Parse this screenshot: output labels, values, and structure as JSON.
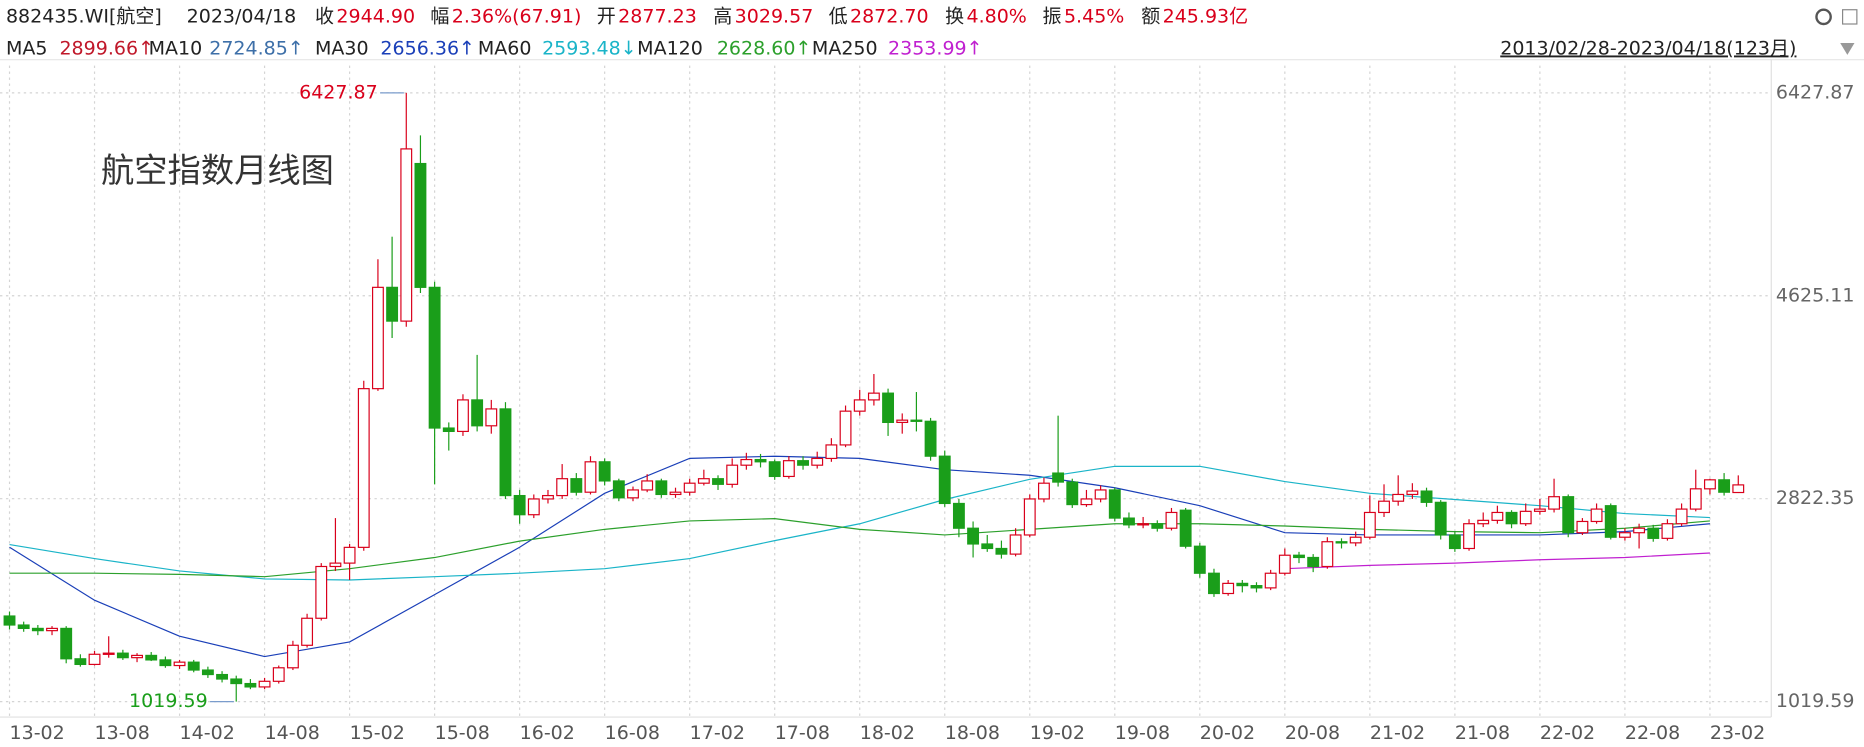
{
  "chart_data": {
    "type": "candlestick",
    "title": "航空指数月线图",
    "quote": {
      "code": "882435.WI[航空]",
      "date": "2023/04/18",
      "fields": [
        {
          "label": "收",
          "value": "2944.90"
        },
        {
          "label": "幅",
          "value": "2.36%(67.91)"
        },
        {
          "label": "开",
          "value": "2877.23"
        },
        {
          "label": "高",
          "value": "3029.57"
        },
        {
          "label": "低",
          "value": "2872.70"
        },
        {
          "label": "换",
          "value": "4.80%"
        },
        {
          "label": "振",
          "value": "5.45%"
        },
        {
          "label": "额",
          "value": "245.93亿"
        }
      ]
    },
    "range_label": "2013/02/28-2023/04/18(123月)",
    "up_color": "#d9001b",
    "down_color": "#1a9e1a",
    "ylim": [
      914,
      6670
    ],
    "yticks": [
      1019.59,
      2822.35,
      4625.11,
      6427.87
    ],
    "grid": true,
    "annotations": [
      6427.87,
      1019.59
    ],
    "categories": [
      "13-02",
      null,
      null,
      null,
      null,
      null,
      "13-08",
      null,
      null,
      null,
      null,
      null,
      "14-02",
      null,
      null,
      null,
      null,
      null,
      "14-08",
      null,
      null,
      null,
      null,
      null,
      "15-02",
      null,
      null,
      null,
      null,
      null,
      "15-08",
      null,
      null,
      null,
      null,
      null,
      "16-02",
      null,
      null,
      null,
      null,
      null,
      "16-08",
      null,
      null,
      null,
      null,
      null,
      "17-02",
      null,
      null,
      null,
      null,
      null,
      "17-08",
      null,
      null,
      null,
      null,
      null,
      "18-02",
      null,
      null,
      null,
      null,
      null,
      "18-08",
      null,
      null,
      null,
      null,
      null,
      "19-02",
      null,
      null,
      null,
      null,
      null,
      "19-08",
      null,
      null,
      null,
      null,
      null,
      "20-02",
      null,
      null,
      null,
      null,
      null,
      "20-08",
      null,
      null,
      null,
      null,
      null,
      "21-02",
      null,
      null,
      null,
      null,
      null,
      "21-08",
      null,
      null,
      null,
      null,
      null,
      "22-02",
      null,
      null,
      null,
      null,
      null,
      "22-08",
      null,
      null,
      null,
      null,
      null,
      "23-02",
      null,
      null
    ],
    "candles": [
      [
        1780,
        1820,
        1660,
        1700
      ],
      [
        1700,
        1730,
        1640,
        1670
      ],
      [
        1670,
        1700,
        1610,
        1650
      ],
      [
        1650,
        1690,
        1610,
        1670
      ],
      [
        1670,
        1690,
        1360,
        1400
      ],
      [
        1400,
        1440,
        1330,
        1350
      ],
      [
        1350,
        1470,
        1340,
        1440
      ],
      [
        1440,
        1600,
        1410,
        1450
      ],
      [
        1450,
        1480,
        1390,
        1410
      ],
      [
        1410,
        1450,
        1370,
        1430
      ],
      [
        1430,
        1460,
        1380,
        1390
      ],
      [
        1390,
        1420,
        1320,
        1340
      ],
      [
        1340,
        1390,
        1310,
        1370
      ],
      [
        1370,
        1390,
        1280,
        1300
      ],
      [
        1300,
        1330,
        1230,
        1260
      ],
      [
        1260,
        1290,
        1190,
        1220
      ],
      [
        1220,
        1250,
        1019.59,
        1180
      ],
      [
        1180,
        1220,
        1130,
        1150
      ],
      [
        1150,
        1230,
        1130,
        1200
      ],
      [
        1200,
        1340,
        1180,
        1320
      ],
      [
        1320,
        1560,
        1300,
        1520
      ],
      [
        1520,
        1800,
        1500,
        1760
      ],
      [
        1760,
        2250,
        1740,
        2220
      ],
      [
        2220,
        2650,
        2180,
        2250
      ],
      [
        2250,
        2420,
        2100,
        2390
      ],
      [
        2390,
        3870,
        2360,
        3800
      ],
      [
        3800,
        4950,
        3780,
        4700
      ],
      [
        4700,
        5150,
        4250,
        4400
      ],
      [
        4400,
        6427.87,
        4350,
        5930
      ],
      [
        5800,
        6050,
        4650,
        4700
      ],
      [
        4700,
        4750,
        2950,
        3450
      ],
      [
        3450,
        3500,
        3250,
        3420
      ],
      [
        3420,
        3750,
        3380,
        3700
      ],
      [
        3700,
        4100,
        3420,
        3470
      ],
      [
        3470,
        3700,
        3400,
        3620
      ],
      [
        3620,
        3680,
        2820,
        2850
      ],
      [
        2850,
        2900,
        2600,
        2680
      ],
      [
        2680,
        2860,
        2650,
        2820
      ],
      [
        2820,
        2900,
        2780,
        2850
      ],
      [
        2850,
        3130,
        2820,
        3000
      ],
      [
        3000,
        3050,
        2850,
        2880
      ],
      [
        2880,
        3200,
        2860,
        3150
      ],
      [
        3150,
        3180,
        2940,
        2980
      ],
      [
        2980,
        3000,
        2800,
        2830
      ],
      [
        2830,
        2930,
        2800,
        2900
      ],
      [
        2900,
        3040,
        2880,
        2980
      ],
      [
        2980,
        3000,
        2830,
        2860
      ],
      [
        2860,
        2920,
        2830,
        2880
      ],
      [
        2880,
        3000,
        2850,
        2960
      ],
      [
        2960,
        3080,
        2940,
        3000
      ],
      [
        3000,
        3030,
        2900,
        2950
      ],
      [
        2950,
        3180,
        2920,
        3120
      ],
      [
        3120,
        3230,
        3080,
        3170
      ],
      [
        3170,
        3220,
        3100,
        3150
      ],
      [
        3150,
        3170,
        2990,
        3020
      ],
      [
        3020,
        3200,
        3000,
        3160
      ],
      [
        3160,
        3200,
        3080,
        3120
      ],
      [
        3120,
        3240,
        3090,
        3180
      ],
      [
        3180,
        3360,
        3150,
        3300
      ],
      [
        3300,
        3650,
        3280,
        3600
      ],
      [
        3600,
        3790,
        3560,
        3700
      ],
      [
        3700,
        3930,
        3650,
        3760
      ],
      [
        3760,
        3800,
        3380,
        3500
      ],
      [
        3500,
        3580,
        3400,
        3520
      ],
      [
        3520,
        3770,
        3420,
        3510
      ],
      [
        3510,
        3540,
        3160,
        3200
      ],
      [
        3200,
        3250,
        2750,
        2780
      ],
      [
        2780,
        2820,
        2480,
        2560
      ],
      [
        2560,
        2620,
        2300,
        2420
      ],
      [
        2420,
        2500,
        2350,
        2380
      ],
      [
        2380,
        2450,
        2290,
        2330
      ],
      [
        2330,
        2560,
        2310,
        2500
      ],
      [
        2500,
        2860,
        2480,
        2820
      ],
      [
        2820,
        3010,
        2790,
        2960
      ],
      [
        3050,
        3560,
        2930,
        2970
      ],
      [
        2970,
        3000,
        2740,
        2770
      ],
      [
        2770,
        2900,
        2750,
        2820
      ],
      [
        2820,
        2940,
        2790,
        2900
      ],
      [
        2900,
        2920,
        2620,
        2650
      ],
      [
        2650,
        2700,
        2560,
        2590
      ],
      [
        2590,
        2660,
        2560,
        2600
      ],
      [
        2600,
        2630,
        2530,
        2560
      ],
      [
        2560,
        2740,
        2540,
        2700
      ],
      [
        2720,
        2740,
        2380,
        2400
      ],
      [
        2400,
        2430,
        2120,
        2160
      ],
      [
        2160,
        2200,
        1950,
        1980
      ],
      [
        1980,
        2100,
        1960,
        2070
      ],
      [
        2070,
        2100,
        1990,
        2050
      ],
      [
        2050,
        2080,
        1990,
        2030
      ],
      [
        2030,
        2190,
        2010,
        2160
      ],
      [
        2160,
        2380,
        2140,
        2320
      ],
      [
        2320,
        2350,
        2250,
        2300
      ],
      [
        2300,
        2330,
        2170,
        2220
      ],
      [
        2220,
        2480,
        2200,
        2440
      ],
      [
        2440,
        2470,
        2380,
        2430
      ],
      [
        2430,
        2530,
        2400,
        2480
      ],
      [
        2480,
        2850,
        2460,
        2700
      ],
      [
        2700,
        2950,
        2660,
        2800
      ],
      [
        2800,
        3030,
        2760,
        2860
      ],
      [
        2860,
        2960,
        2820,
        2890
      ],
      [
        2890,
        2920,
        2750,
        2790
      ],
      [
        2790,
        2810,
        2460,
        2500
      ],
      [
        2500,
        2530,
        2350,
        2380
      ],
      [
        2380,
        2640,
        2360,
        2600
      ],
      [
        2600,
        2700,
        2570,
        2630
      ],
      [
        2630,
        2760,
        2600,
        2700
      ],
      [
        2700,
        2720,
        2560,
        2600
      ],
      [
        2600,
        2780,
        2580,
        2710
      ],
      [
        2710,
        2820,
        2680,
        2730
      ],
      [
        2730,
        3000,
        2700,
        2840
      ],
      [
        2840,
        2860,
        2480,
        2520
      ],
      [
        2520,
        2650,
        2500,
        2620
      ],
      [
        2620,
        2780,
        2600,
        2730
      ],
      [
        2760,
        2780,
        2460,
        2480
      ],
      [
        2480,
        2560,
        2450,
        2520
      ],
      [
        2520,
        2600,
        2380,
        2560
      ],
      [
        2560,
        2590,
        2440,
        2470
      ],
      [
        2470,
        2640,
        2450,
        2600
      ],
      [
        2600,
        2780,
        2580,
        2730
      ],
      [
        2730,
        3080,
        2710,
        2910
      ],
      [
        2910,
        3000,
        2860,
        2990
      ],
      [
        2990,
        3050,
        2850,
        2880
      ],
      [
        2877.23,
        3029.57,
        2872.7,
        2944.9
      ]
    ],
    "series": [
      {
        "name": "MA5",
        "color": "#c0182a",
        "value": 2899.66,
        "value_label": "2899.66↑"
      },
      {
        "name": "MA10",
        "color": "#3d6fa8",
        "value": 2724.85,
        "value_label": "2724.85↑"
      },
      {
        "name": "MA30",
        "color": "#1a3fb8",
        "value": 2656.36,
        "value_label": "2656.36↑",
        "x": [
          "13-02",
          "13-08",
          "14-02",
          "14-08",
          "15-02",
          "15-08",
          "16-02",
          "16-08",
          "17-02",
          "17-08",
          "18-02",
          "18-08",
          "19-02",
          "19-08",
          "20-02",
          "20-08",
          "21-02",
          "21-08",
          "22-02",
          "22-08",
          "23-02"
        ],
        "values": [
          2390,
          1920,
          1600,
          1420,
          1550,
          1970,
          2390,
          2870,
          3180,
          3200,
          3180,
          3080,
          3030,
          2920,
          2760,
          2520,
          2500,
          2500,
          2500,
          2530,
          2600
        ]
      },
      {
        "name": "MA60",
        "color": "#1ab4c8",
        "value": 2593.48,
        "value_label": "2593.48↓",
        "x": [
          "13-02",
          "13-08",
          "14-02",
          "14-08",
          "15-02",
          "15-08",
          "16-02",
          "16-08",
          "17-02",
          "17-08",
          "18-02",
          "18-08",
          "19-02",
          "19-08",
          "20-02",
          "20-08",
          "21-02",
          "21-08",
          "22-02",
          "22-08",
          "23-02"
        ],
        "values": [
          2415,
          2290,
          2180,
          2110,
          2100,
          2130,
          2160,
          2200,
          2290,
          2450,
          2600,
          2815,
          2995,
          3110,
          3110,
          2975,
          2870,
          2815,
          2760,
          2690,
          2655
        ]
      },
      {
        "name": "MA120",
        "color": "#2ca02c",
        "value": 2628.6,
        "value_label": "2628.60↑",
        "x": [
          "13-02",
          "13-08",
          "14-02",
          "14-08",
          "15-02",
          "15-08",
          "16-02",
          "16-08",
          "17-02",
          "17-08",
          "18-02",
          "18-08",
          "19-02",
          "19-08",
          "20-02",
          "20-08",
          "21-02",
          "21-08",
          "22-02",
          "22-08",
          "23-02"
        ],
        "values": [
          2160,
          2160,
          2150,
          2130,
          2200,
          2300,
          2445,
          2550,
          2625,
          2645,
          2550,
          2500,
          2550,
          2600,
          2600,
          2580,
          2550,
          2530,
          2520,
          2560,
          2625
        ]
      },
      {
        "name": "MA250",
        "color": "#c020d0",
        "value": 2353.99,
        "value_label": "2353.99↑",
        "x": [
          "13-02",
          "13-08",
          "14-02",
          "14-08",
          "15-02",
          "15-08",
          "16-02",
          "16-08",
          "17-02",
          "17-08",
          "18-02",
          "18-08",
          "19-02",
          "19-08",
          "20-02",
          "20-08",
          "21-02",
          "21-08",
          "22-02",
          "22-08",
          "23-02"
        ],
        "values": [
          null,
          null,
          null,
          null,
          null,
          null,
          null,
          null,
          null,
          null,
          null,
          null,
          null,
          null,
          null,
          2200,
          2230,
          2250,
          2280,
          2300,
          2340
        ]
      }
    ]
  }
}
